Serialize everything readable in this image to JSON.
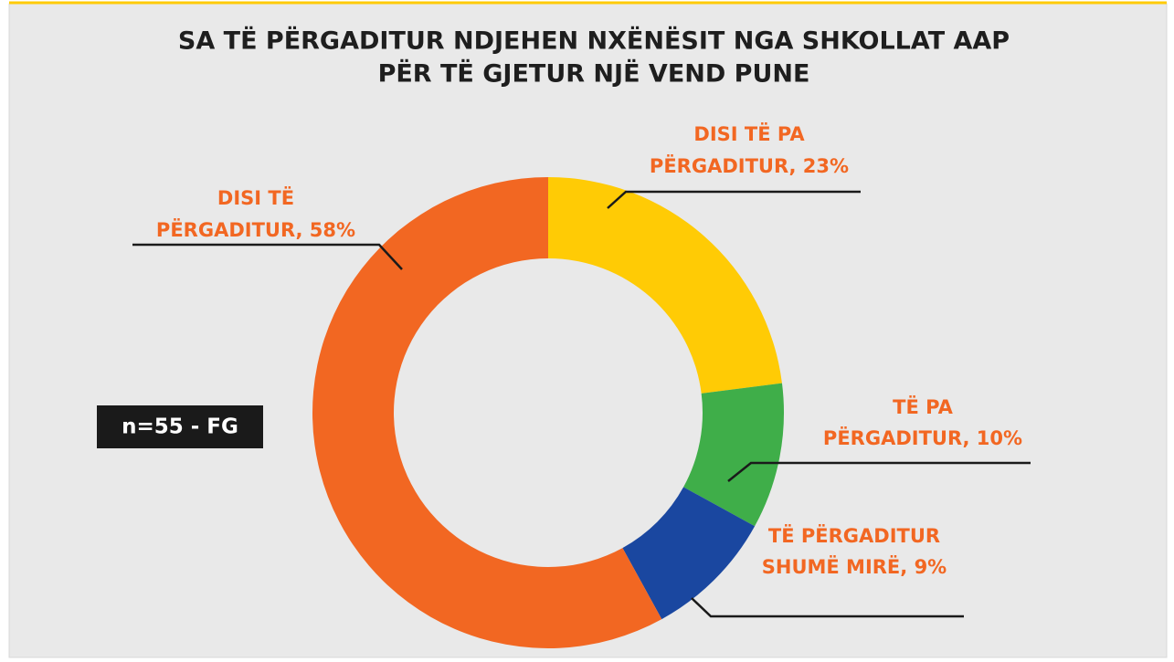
{
  "chart_data": {
    "type": "donut",
    "title": [
      "SA TË PËRGADITUR NDJEHEN NXËNËSIT NGA SHKOLLAT AAP",
      "PËR TË GJETUR NJË VEND PUNE"
    ],
    "labels": [
      [
        "DISI TË PA",
        "PËRGADITUR, 23%"
      ],
      [
        "TË PA",
        "PËRGADITUR, 10%"
      ],
      [
        "TË PËRGADITUR",
        "SHUMË MIRË, 9%"
      ],
      [
        "DISI TË",
        "PËRGADITUR, 58%"
      ]
    ],
    "values": [
      23,
      10,
      9,
      58
    ],
    "colors": [
      "#ffcb05",
      "#3fae49",
      "#1a47a0",
      "#f26722"
    ],
    "annotation": "n=55 - FG"
  }
}
